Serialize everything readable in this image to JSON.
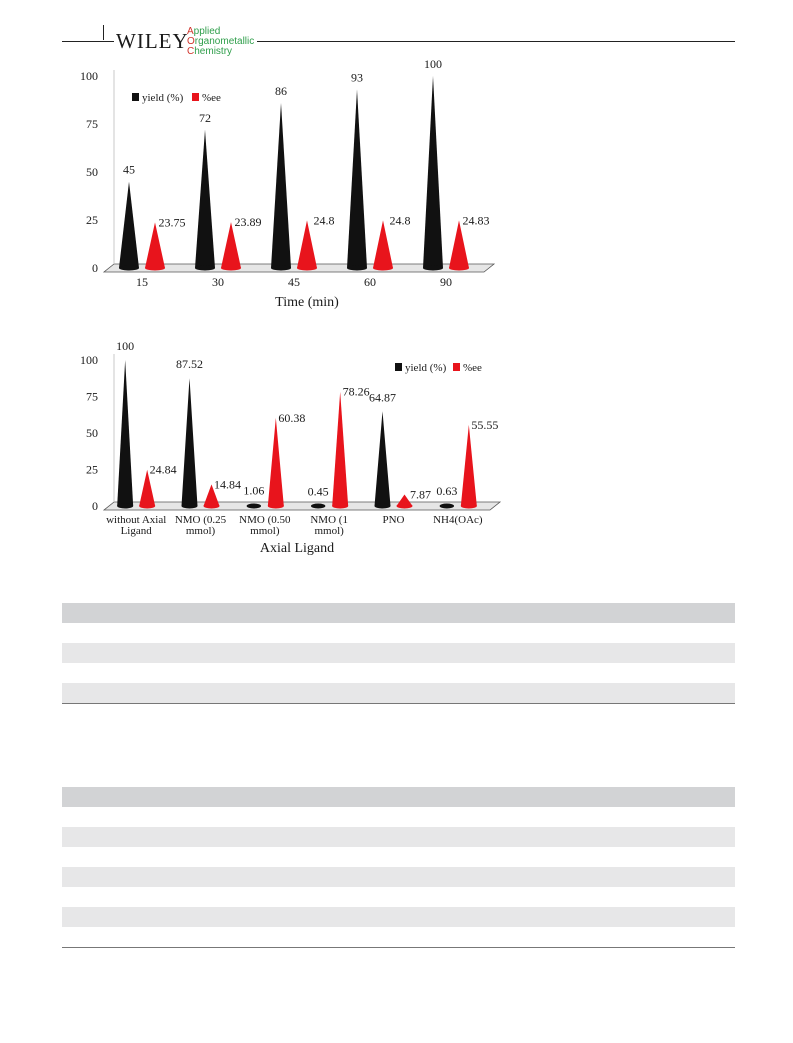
{
  "header": {
    "brand": "WILEY",
    "journal_lines": [
      {
        "initial": "A",
        "rest": "pplied"
      },
      {
        "initial": "O",
        "rest": "rganometallic"
      },
      {
        "initial": "C",
        "rest": "hemistry"
      }
    ],
    "colors": {
      "initial": "#d0342c",
      "rest": "#2e9e4a"
    }
  },
  "chart_data": [
    {
      "type": "bar",
      "shape": "cone",
      "categories": [
        "15",
        "30",
        "45",
        "60",
        "90"
      ],
      "series": [
        {
          "name": "yield (%)",
          "color": "#111111",
          "values": [
            45,
            72,
            86,
            93,
            100
          ],
          "labels": [
            "45",
            "72",
            "86",
            "93",
            "100"
          ]
        },
        {
          "name": "%ee",
          "color": "#e8141c",
          "values": [
            23.75,
            23.89,
            24.8,
            24.8,
            24.83
          ],
          "labels": [
            "23.75",
            "23.89",
            "24.8",
            "24.8",
            "24.83"
          ]
        }
      ],
      "title": "",
      "xlabel": "Time (min)",
      "ylabel": "",
      "ylim": [
        0,
        100
      ],
      "yticks": [
        "0",
        "25",
        "50",
        "75",
        "100"
      ],
      "grid": false,
      "legend_position": "top-left"
    },
    {
      "type": "bar",
      "shape": "cone",
      "categories": [
        [
          "without Axial",
          "Ligand"
        ],
        [
          "NMO (0.25",
          "mmol)"
        ],
        [
          "NMO (0.50",
          "mmol)"
        ],
        [
          "NMO (1",
          "mmol)"
        ],
        [
          "PNO"
        ],
        [
          "NH4(OAc)"
        ]
      ],
      "series": [
        {
          "name": "yield (%)",
          "color": "#111111",
          "values": [
            100,
            87.52,
            1.06,
            0.45,
            64.87,
            0.63
          ],
          "labels": [
            "100",
            "87.52",
            "1.06",
            "0.45",
            "64.87",
            "0.63"
          ]
        },
        {
          "name": "%ee",
          "color": "#e8141c",
          "values": [
            24.84,
            14.84,
            60.38,
            78.26,
            7.87,
            55.55
          ],
          "labels": [
            "24.84",
            "14.84",
            "60.38",
            "78.26",
            "7.87",
            "55.55"
          ]
        }
      ],
      "title": "",
      "xlabel": "Axial Ligand",
      "ylabel": "",
      "ylim": [
        0,
        100
      ],
      "yticks": [
        "0",
        "25",
        "50",
        "75",
        "100"
      ],
      "grid": false,
      "legend_position": "top-right"
    }
  ]
}
